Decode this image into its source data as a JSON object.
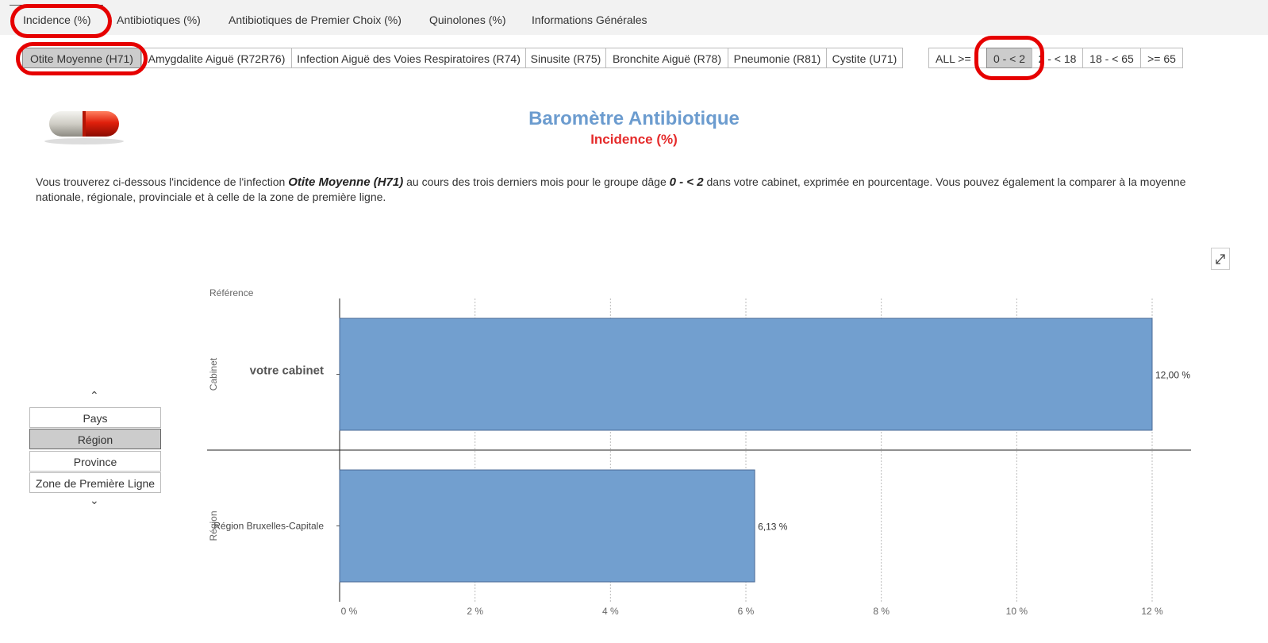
{
  "main_tabs": [
    {
      "label": "Incidence (%)"
    },
    {
      "label": "Antibiotiques (%)"
    },
    {
      "label": "Antibiotiques de Premier Choix (%)"
    },
    {
      "label": "Quinolones (%)"
    },
    {
      "label": "Informations Générales"
    }
  ],
  "conditions": [
    {
      "label": "Otite Moyenne (H71)"
    },
    {
      "label": "Amygdalite Aiguë (R72R76)"
    },
    {
      "label": "Infection Aiguë des Voies Respiratoires (R74)"
    },
    {
      "label": "Sinusite (R75)"
    },
    {
      "label": "Bronchite Aiguë (R78)"
    },
    {
      "label": "Pneumonie (R81)"
    },
    {
      "label": "Cystite (U71)"
    }
  ],
  "age_groups": [
    {
      "label": "ALL >= "
    },
    {
      "label": "0 - < 2"
    },
    {
      "label": "2 - < 18"
    },
    {
      "label": "18 - < 65"
    },
    {
      "label": ">= 65"
    }
  ],
  "header": {
    "title": "Baromètre Antibiotique",
    "subtitle": "Incidence (%)"
  },
  "description": {
    "part1": "Vous trouverez ci-dessous l'incidence de l'infection ",
    "infection": "Otite Moyenne (H71)",
    "part2": " au cours des trois derniers mois pour le groupe dâge ",
    "age": "0 - < 2",
    "part3": " dans votre cabinet, exprimée en pourcentage. Vous pouvez également la comparer à la moyenne nationale, régionale, provinciale et à celle de la zone de première ligne."
  },
  "filters": {
    "up_arrow": "⌃",
    "down_arrow": "⌄",
    "items": [
      {
        "label": "Pays"
      },
      {
        "label": "Région"
      },
      {
        "label": "Province"
      },
      {
        "label": "Zone de Première Ligne"
      }
    ]
  },
  "colors": {
    "bar": "#729fcf",
    "highlight": "#e60000",
    "title": "#6c9ccf",
    "subtitle": "#e52b2b"
  },
  "chart_data": {
    "type": "bar",
    "orientation": "horizontal",
    "legend_title": "Référence",
    "groups": [
      {
        "group": "Cabinet",
        "category": "votre cabinet",
        "value": 12.0,
        "label": "12,00 %"
      },
      {
        "group": "Région",
        "category": "Région Bruxelles-Capitale",
        "value": 6.13,
        "label": "6,13 %"
      }
    ],
    "xlim": [
      0,
      12
    ],
    "xticks": [
      {
        "value": 0,
        "label": "0 %"
      },
      {
        "value": 2,
        "label": "2 %"
      },
      {
        "value": 4,
        "label": "4 %"
      },
      {
        "value": 6,
        "label": "6 %"
      },
      {
        "value": 8,
        "label": "8 %"
      },
      {
        "value": 10,
        "label": "10 %"
      },
      {
        "value": 12,
        "label": "12 %"
      }
    ],
    "grid": "vertical-dotted"
  }
}
